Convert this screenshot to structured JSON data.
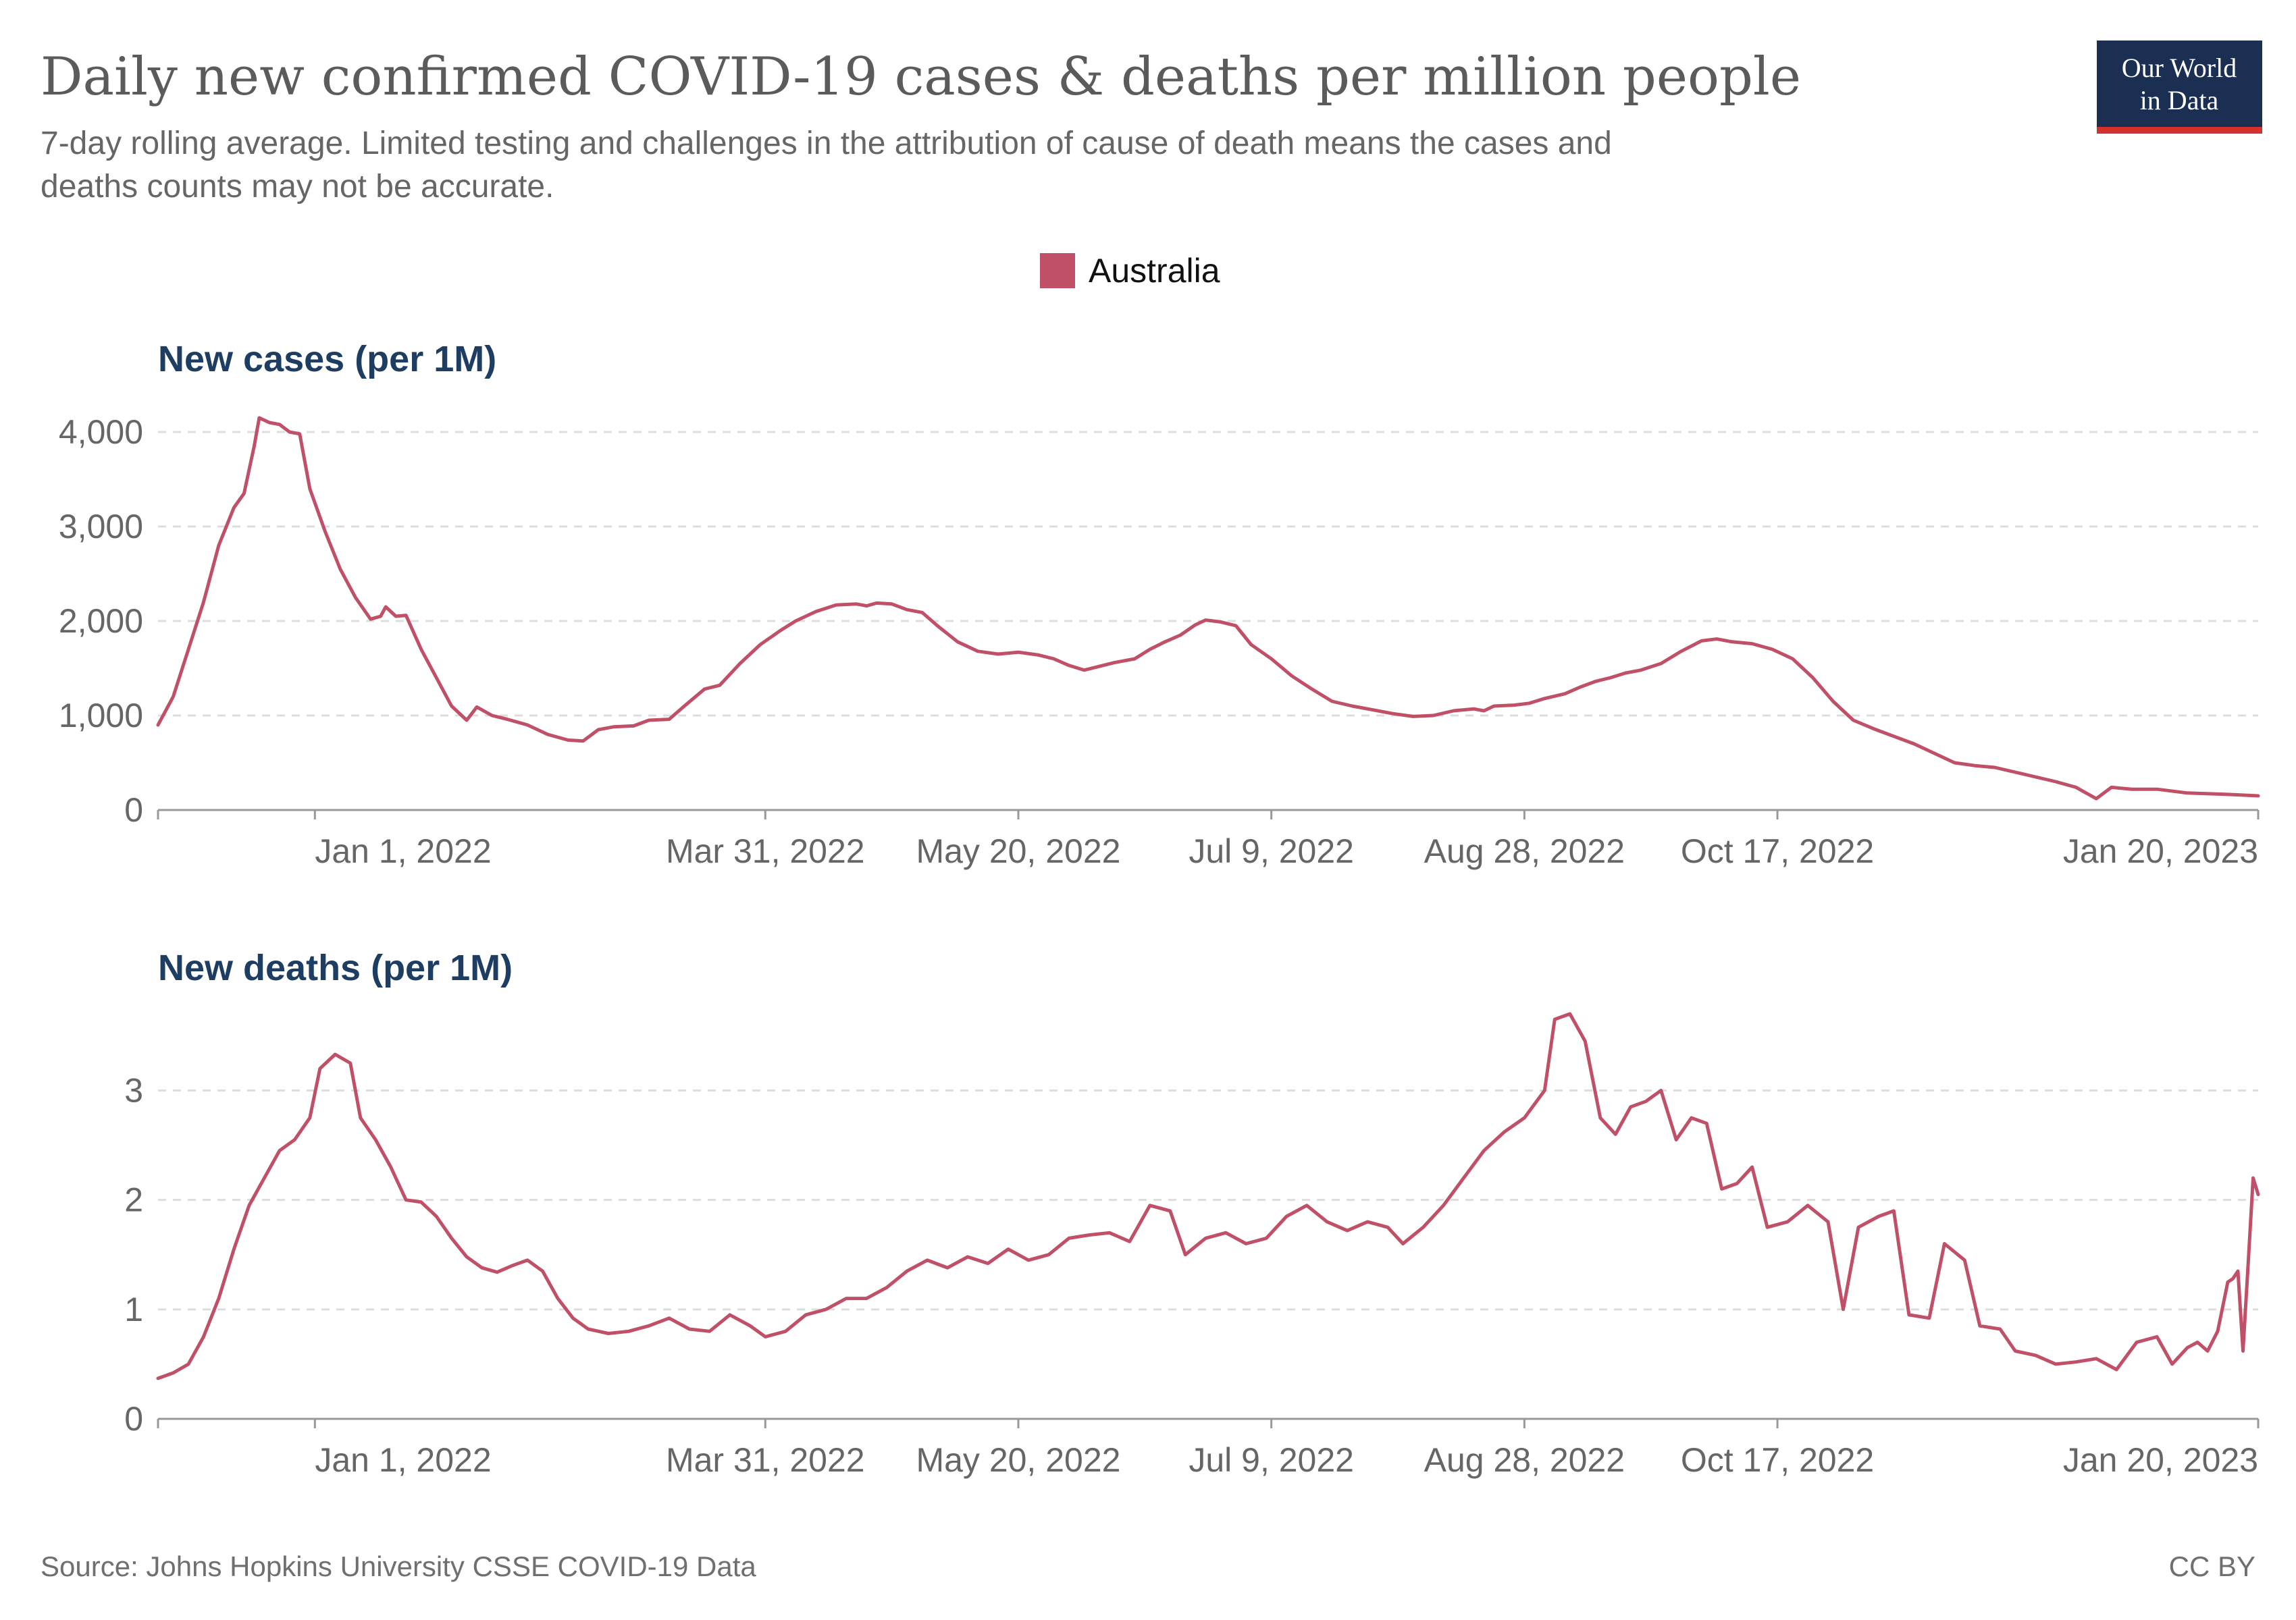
{
  "title": "Daily new confirmed COVID-19 cases & deaths per million people",
  "subtitle_line1": "7-day rolling average. Limited testing and challenges in the attribution of cause of death means the cases and",
  "subtitle_line2": "deaths counts may not be accurate.",
  "legend_label": "Australia",
  "logo_line1": "Our World",
  "logo_line2": "in Data",
  "source": "Source: Johns Hopkins University CSSE COVID-19 Data",
  "license": "CC BY",
  "colors": {
    "series": "#c05067",
    "logo_bg": "#1a2f52",
    "logo_bar": "#d3312b"
  },
  "chart_data": [
    {
      "type": "line",
      "title": "New cases (per 1M)",
      "series": [
        {
          "name": "Australia"
        }
      ],
      "x_ticks": [
        "Jan 1, 2022",
        "Mar 31, 2022",
        "May 20, 2022",
        "Jul 9, 2022",
        "Aug 28, 2022",
        "Oct 17, 2022",
        "Jan 20, 2023"
      ],
      "y_ticks": [
        "0",
        "1,000",
        "2,000",
        "3,000",
        "4,000"
      ],
      "ylim": [
        0,
        4000
      ],
      "xlim": [
        "2021-12-01",
        "2023-01-20"
      ],
      "grid": true,
      "points": [
        [
          "2021-12-01",
          900
        ],
        [
          "2021-12-04",
          1200
        ],
        [
          "2021-12-07",
          1700
        ],
        [
          "2021-12-10",
          2200
        ],
        [
          "2021-12-13",
          2800
        ],
        [
          "2021-12-16",
          3200
        ],
        [
          "2021-12-18",
          3350
        ],
        [
          "2021-12-20",
          3850
        ],
        [
          "2021-12-21",
          4150
        ],
        [
          "2021-12-23",
          4100
        ],
        [
          "2021-12-25",
          4080
        ],
        [
          "2021-12-27",
          4000
        ],
        [
          "2021-12-29",
          3980
        ],
        [
          "2021-12-31",
          3400
        ],
        [
          "2022-01-03",
          2950
        ],
        [
          "2022-01-06",
          2550
        ],
        [
          "2022-01-09",
          2250
        ],
        [
          "2022-01-12",
          2020
        ],
        [
          "2022-01-14",
          2050
        ],
        [
          "2022-01-15",
          2150
        ],
        [
          "2022-01-17",
          2050
        ],
        [
          "2022-01-19",
          2060
        ],
        [
          "2022-01-22",
          1700
        ],
        [
          "2022-01-25",
          1400
        ],
        [
          "2022-01-28",
          1100
        ],
        [
          "2022-01-31",
          950
        ],
        [
          "2022-02-02",
          1090
        ],
        [
          "2022-02-05",
          1000
        ],
        [
          "2022-02-08",
          960
        ],
        [
          "2022-02-12",
          900
        ],
        [
          "2022-02-16",
          800
        ],
        [
          "2022-02-20",
          740
        ],
        [
          "2022-02-23",
          730
        ],
        [
          "2022-02-26",
          850
        ],
        [
          "2022-03-01",
          880
        ],
        [
          "2022-03-05",
          890
        ],
        [
          "2022-03-08",
          950
        ],
        [
          "2022-03-12",
          960
        ],
        [
          "2022-03-15",
          1100
        ],
        [
          "2022-03-19",
          1280
        ],
        [
          "2022-03-22",
          1320
        ],
        [
          "2022-03-26",
          1550
        ],
        [
          "2022-03-30",
          1750
        ],
        [
          "2022-04-03",
          1900
        ],
        [
          "2022-04-06",
          2000
        ],
        [
          "2022-04-10",
          2100
        ],
        [
          "2022-04-14",
          2170
        ],
        [
          "2022-04-18",
          2180
        ],
        [
          "2022-04-20",
          2160
        ],
        [
          "2022-04-22",
          2190
        ],
        [
          "2022-04-25",
          2180
        ],
        [
          "2022-04-28",
          2120
        ],
        [
          "2022-05-01",
          2090
        ],
        [
          "2022-05-04",
          1950
        ],
        [
          "2022-05-08",
          1780
        ],
        [
          "2022-05-12",
          1680
        ],
        [
          "2022-05-16",
          1650
        ],
        [
          "2022-05-20",
          1670
        ],
        [
          "2022-05-24",
          1640
        ],
        [
          "2022-05-27",
          1600
        ],
        [
          "2022-05-30",
          1530
        ],
        [
          "2022-06-02",
          1480
        ],
        [
          "2022-06-05",
          1520
        ],
        [
          "2022-06-08",
          1560
        ],
        [
          "2022-06-12",
          1600
        ],
        [
          "2022-06-15",
          1700
        ],
        [
          "2022-06-18",
          1780
        ],
        [
          "2022-06-21",
          1850
        ],
        [
          "2022-06-24",
          1960
        ],
        [
          "2022-06-26",
          2010
        ],
        [
          "2022-06-29",
          1990
        ],
        [
          "2022-07-02",
          1950
        ],
        [
          "2022-07-05",
          1750
        ],
        [
          "2022-07-09",
          1600
        ],
        [
          "2022-07-13",
          1420
        ],
        [
          "2022-07-17",
          1280
        ],
        [
          "2022-07-21",
          1150
        ],
        [
          "2022-07-25",
          1100
        ],
        [
          "2022-07-29",
          1060
        ],
        [
          "2022-08-02",
          1020
        ],
        [
          "2022-08-06",
          990
        ],
        [
          "2022-08-10",
          1000
        ],
        [
          "2022-08-14",
          1050
        ],
        [
          "2022-08-18",
          1070
        ],
        [
          "2022-08-20",
          1050
        ],
        [
          "2022-08-22",
          1100
        ],
        [
          "2022-08-26",
          1110
        ],
        [
          "2022-08-29",
          1130
        ],
        [
          "2022-09-01",
          1180
        ],
        [
          "2022-09-05",
          1230
        ],
        [
          "2022-09-08",
          1300
        ],
        [
          "2022-09-11",
          1360
        ],
        [
          "2022-09-14",
          1400
        ],
        [
          "2022-09-17",
          1450
        ],
        [
          "2022-09-20",
          1480
        ],
        [
          "2022-09-24",
          1550
        ],
        [
          "2022-09-28",
          1680
        ],
        [
          "2022-10-02",
          1790
        ],
        [
          "2022-10-05",
          1810
        ],
        [
          "2022-10-08",
          1780
        ],
        [
          "2022-10-12",
          1760
        ],
        [
          "2022-10-16",
          1700
        ],
        [
          "2022-10-20",
          1600
        ],
        [
          "2022-10-24",
          1400
        ],
        [
          "2022-10-28",
          1150
        ],
        [
          "2022-11-01",
          950
        ],
        [
          "2022-11-05",
          860
        ],
        [
          "2022-11-09",
          780
        ],
        [
          "2022-11-13",
          700
        ],
        [
          "2022-11-17",
          600
        ],
        [
          "2022-11-21",
          500
        ],
        [
          "2022-11-25",
          470
        ],
        [
          "2022-11-29",
          450
        ],
        [
          "2022-12-03",
          400
        ],
        [
          "2022-12-07",
          350
        ],
        [
          "2022-12-11",
          300
        ],
        [
          "2022-12-15",
          240
        ],
        [
          "2022-12-19",
          120
        ],
        [
          "2022-12-22",
          240
        ],
        [
          "2022-12-26",
          220
        ],
        [
          "2022-12-31",
          220
        ],
        [
          "2023-01-06",
          180
        ],
        [
          "2023-01-14",
          165
        ],
        [
          "2023-01-20",
          150
        ]
      ]
    },
    {
      "type": "line",
      "title": "New deaths (per 1M)",
      "series": [
        {
          "name": "Australia"
        }
      ],
      "x_ticks": [
        "Jan 1, 2022",
        "Mar 31, 2022",
        "May 20, 2022",
        "Jul 9, 2022",
        "Aug 28, 2022",
        "Oct 17, 2022",
        "Jan 20, 2023"
      ],
      "y_ticks": [
        "0",
        "1",
        "2",
        "3"
      ],
      "ylim": [
        0,
        3.7
      ],
      "xlim": [
        "2021-12-01",
        "2023-01-20"
      ],
      "grid": true,
      "points": [
        [
          "2021-12-01",
          0.37
        ],
        [
          "2021-12-04",
          0.42
        ],
        [
          "2021-12-07",
          0.5
        ],
        [
          "2021-12-10",
          0.75
        ],
        [
          "2021-12-13",
          1.1
        ],
        [
          "2021-12-16",
          1.55
        ],
        [
          "2021-12-19",
          1.95
        ],
        [
          "2021-12-22",
          2.2
        ],
        [
          "2021-12-25",
          2.45
        ],
        [
          "2021-12-28",
          2.55
        ],
        [
          "2021-12-31",
          2.75
        ],
        [
          "2022-01-02",
          3.2
        ],
        [
          "2022-01-05",
          3.33
        ],
        [
          "2022-01-08",
          3.25
        ],
        [
          "2022-01-10",
          2.75
        ],
        [
          "2022-01-13",
          2.55
        ],
        [
          "2022-01-16",
          2.3
        ],
        [
          "2022-01-19",
          2.0
        ],
        [
          "2022-01-22",
          1.98
        ],
        [
          "2022-01-25",
          1.85
        ],
        [
          "2022-01-28",
          1.65
        ],
        [
          "2022-01-31",
          1.48
        ],
        [
          "2022-02-03",
          1.38
        ],
        [
          "2022-02-06",
          1.34
        ],
        [
          "2022-02-09",
          1.4
        ],
        [
          "2022-02-12",
          1.45
        ],
        [
          "2022-02-15",
          1.35
        ],
        [
          "2022-02-18",
          1.1
        ],
        [
          "2022-02-21",
          0.92
        ],
        [
          "2022-02-24",
          0.82
        ],
        [
          "2022-02-28",
          0.78
        ],
        [
          "2022-03-04",
          0.8
        ],
        [
          "2022-03-08",
          0.85
        ],
        [
          "2022-03-12",
          0.92
        ],
        [
          "2022-03-16",
          0.82
        ],
        [
          "2022-03-20",
          0.8
        ],
        [
          "2022-03-24",
          0.95
        ],
        [
          "2022-03-28",
          0.85
        ],
        [
          "2022-03-31",
          0.75
        ],
        [
          "2022-04-04",
          0.8
        ],
        [
          "2022-04-08",
          0.95
        ],
        [
          "2022-04-12",
          1.0
        ],
        [
          "2022-04-16",
          1.1
        ],
        [
          "2022-04-20",
          1.1
        ],
        [
          "2022-04-24",
          1.2
        ],
        [
          "2022-04-28",
          1.35
        ],
        [
          "2022-05-02",
          1.45
        ],
        [
          "2022-05-06",
          1.38
        ],
        [
          "2022-05-10",
          1.48
        ],
        [
          "2022-05-14",
          1.42
        ],
        [
          "2022-05-18",
          1.55
        ],
        [
          "2022-05-22",
          1.45
        ],
        [
          "2022-05-26",
          1.5
        ],
        [
          "2022-05-30",
          1.65
        ],
        [
          "2022-06-03",
          1.68
        ],
        [
          "2022-06-07",
          1.7
        ],
        [
          "2022-06-11",
          1.62
        ],
        [
          "2022-06-15",
          1.95
        ],
        [
          "2022-06-19",
          1.9
        ],
        [
          "2022-06-22",
          1.5
        ],
        [
          "2022-06-26",
          1.65
        ],
        [
          "2022-06-30",
          1.7
        ],
        [
          "2022-07-04",
          1.6
        ],
        [
          "2022-07-08",
          1.65
        ],
        [
          "2022-07-12",
          1.85
        ],
        [
          "2022-07-16",
          1.95
        ],
        [
          "2022-07-20",
          1.8
        ],
        [
          "2022-07-24",
          1.72
        ],
        [
          "2022-07-28",
          1.8
        ],
        [
          "2022-08-01",
          1.75
        ],
        [
          "2022-08-04",
          1.6
        ],
        [
          "2022-08-08",
          1.75
        ],
        [
          "2022-08-12",
          1.95
        ],
        [
          "2022-08-16",
          2.2
        ],
        [
          "2022-08-20",
          2.45
        ],
        [
          "2022-08-24",
          2.62
        ],
        [
          "2022-08-28",
          2.75
        ],
        [
          "2022-09-01",
          3.0
        ],
        [
          "2022-09-03",
          3.65
        ],
        [
          "2022-09-06",
          3.7
        ],
        [
          "2022-09-09",
          3.45
        ],
        [
          "2022-09-12",
          2.75
        ],
        [
          "2022-09-15",
          2.6
        ],
        [
          "2022-09-18",
          2.85
        ],
        [
          "2022-09-21",
          2.9
        ],
        [
          "2022-09-24",
          3.0
        ],
        [
          "2022-09-27",
          2.55
        ],
        [
          "2022-09-30",
          2.75
        ],
        [
          "2022-10-03",
          2.7
        ],
        [
          "2022-10-06",
          2.1
        ],
        [
          "2022-10-09",
          2.15
        ],
        [
          "2022-10-12",
          2.3
        ],
        [
          "2022-10-15",
          1.75
        ],
        [
          "2022-10-19",
          1.8
        ],
        [
          "2022-10-23",
          1.95
        ],
        [
          "2022-10-27",
          1.8
        ],
        [
          "2022-10-30",
          1.0
        ],
        [
          "2022-11-02",
          1.75
        ],
        [
          "2022-11-06",
          1.85
        ],
        [
          "2022-11-09",
          1.9
        ],
        [
          "2022-11-12",
          0.95
        ],
        [
          "2022-11-16",
          0.92
        ],
        [
          "2022-11-19",
          1.6
        ],
        [
          "2022-11-23",
          1.45
        ],
        [
          "2022-11-26",
          0.85
        ],
        [
          "2022-11-30",
          0.82
        ],
        [
          "2022-12-03",
          0.62
        ],
        [
          "2022-12-07",
          0.58
        ],
        [
          "2022-12-11",
          0.5
        ],
        [
          "2022-12-15",
          0.52
        ],
        [
          "2022-12-19",
          0.55
        ],
        [
          "2022-12-23",
          0.45
        ],
        [
          "2022-12-27",
          0.7
        ],
        [
          "2022-12-31",
          0.75
        ],
        [
          "2023-01-03",
          0.5
        ],
        [
          "2023-01-06",
          0.65
        ],
        [
          "2023-01-08",
          0.7
        ],
        [
          "2023-01-10",
          0.62
        ],
        [
          "2023-01-12",
          0.8
        ],
        [
          "2023-01-14",
          1.25
        ],
        [
          "2023-01-15",
          1.28
        ],
        [
          "2023-01-16",
          1.35
        ],
        [
          "2023-01-17",
          0.62
        ],
        [
          "2023-01-18",
          1.4
        ],
        [
          "2023-01-19",
          2.2
        ],
        [
          "2023-01-20",
          2.05
        ]
      ]
    }
  ]
}
